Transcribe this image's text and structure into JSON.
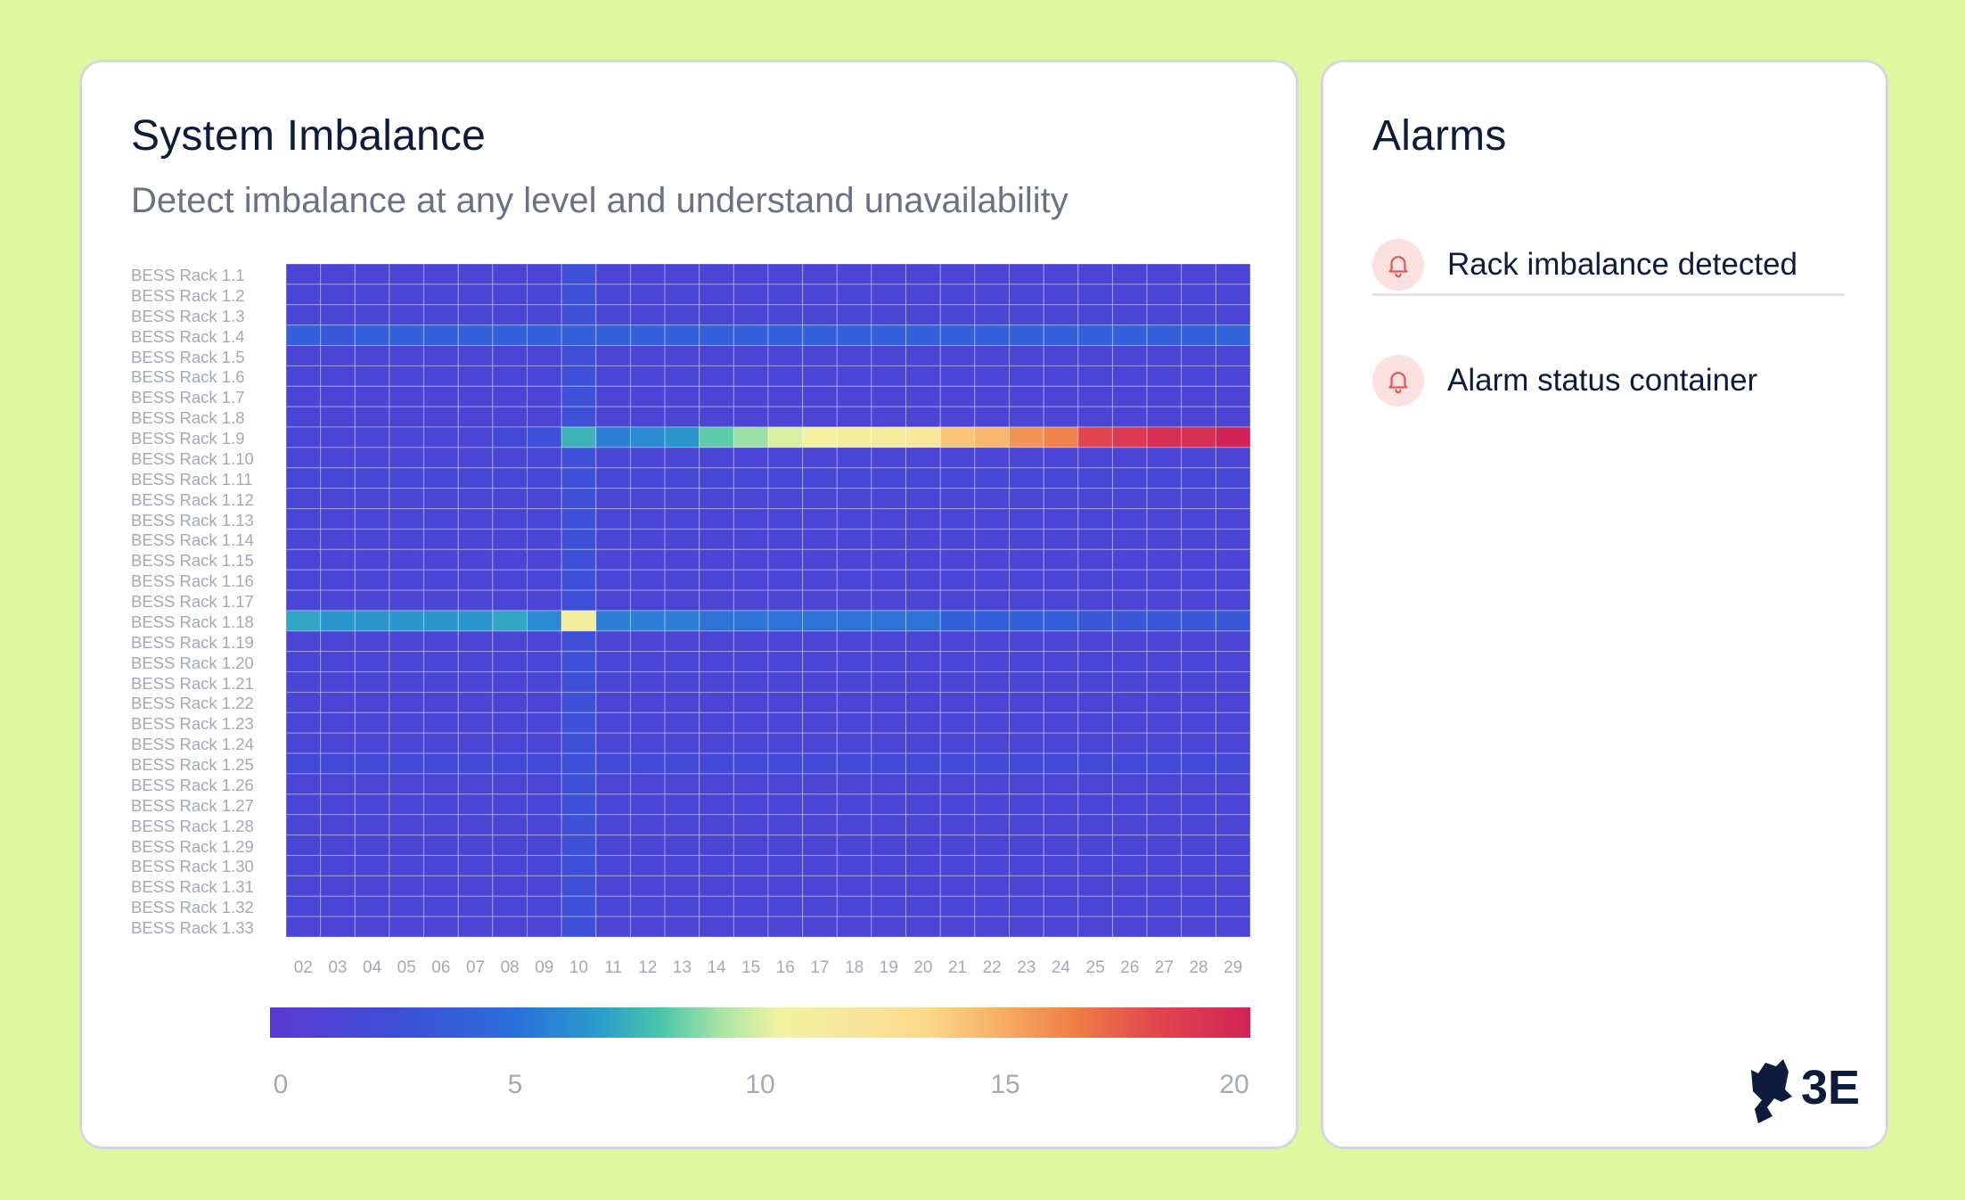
{
  "left_card": {
    "title": "System Imbalance",
    "subtitle": "Detect imbalance at any level and understand unavailability"
  },
  "right_card": {
    "title": "Alarms",
    "alarms": [
      {
        "label": "Rack imbalance detected",
        "icon": "bell-icon"
      },
      {
        "label": "Alarm status container",
        "icon": "bell-icon"
      }
    ]
  },
  "logo_text": "3E",
  "colors": {
    "background": "#dff8a0",
    "card": "#ffffff",
    "title": "#0e1b3d",
    "subtitle": "#6d7186",
    "alarm_icon_bg": "#fbe1df",
    "alarm_icon": "#e05a54"
  },
  "chart_data": {
    "type": "heatmap",
    "xlabel": "",
    "ylabel": "",
    "x": [
      "02",
      "03",
      "04",
      "05",
      "06",
      "07",
      "08",
      "09",
      "10",
      "11",
      "12",
      "13",
      "14",
      "15",
      "16",
      "17",
      "18",
      "19",
      "20",
      "21",
      "22",
      "23",
      "24",
      "25",
      "26",
      "27",
      "28",
      "29"
    ],
    "y": [
      "BESS Rack 1.1",
      "BESS Rack 1.2",
      "BESS Rack 1.3",
      "BESS Rack 1.4",
      "BESS Rack 1.5",
      "BESS Rack 1.6",
      "BESS Rack 1.7",
      "BESS Rack 1.8",
      "BESS Rack 1.9",
      "BESS Rack 1.10",
      "BESS Rack 1.11",
      "BESS Rack 1.12",
      "BESS Rack 1.13",
      "BESS Rack 1.14",
      "BESS Rack 1.15",
      "BESS Rack 1.16",
      "BESS Rack 1.17",
      "BESS Rack 1.18",
      "BESS Rack 1.19",
      "BESS Rack 1.20",
      "BESS Rack 1.21",
      "BESS Rack 1.22",
      "BESS Rack 1.23",
      "BESS Rack 1.24",
      "BESS Rack 1.25",
      "BESS Rack 1.26",
      "BESS Rack 1.27",
      "BESS Rack 1.28",
      "BESS Rack 1.29",
      "BESS Rack 1.30",
      "BESS Rack 1.31",
      "BESS Rack 1.32",
      "BESS Rack 1.33"
    ],
    "colorbar": {
      "min": 0,
      "max": 20,
      "ticks": [
        0,
        5,
        10,
        15,
        20
      ]
    },
    "default_value": 1.5,
    "column_value_overrides": {
      "10": 2.5
    },
    "row_values": {
      "BESS Rack 1.4": [
        3.5,
        3.0,
        3.5,
        3.5,
        3.5,
        3.5,
        3.5,
        3.5,
        3.5,
        3.5,
        3.5,
        3.5,
        3.5,
        3.5,
        3.5,
        3.5,
        3.5,
        3.5,
        3.5,
        3.5,
        3.5,
        3.5,
        3.5,
        3.5,
        3.5,
        3.5,
        3.5,
        3.8
      ],
      "BESS Rack 1.9": [
        1.5,
        1.5,
        1.5,
        1.5,
        1.5,
        1.5,
        2.0,
        2.5,
        7.0,
        5.0,
        5.5,
        6.0,
        8.0,
        9.0,
        10.0,
        10.5,
        11.0,
        11.5,
        12.0,
        14.5,
        15.0,
        16.0,
        16.5,
        18.5,
        19.0,
        19.5,
        19.5,
        20.0
      ],
      "BESS Rack 1.18": [
        6.5,
        6.0,
        6.0,
        6.0,
        6.0,
        6.0,
        6.5,
        5.5,
        11.0,
        5.0,
        5.0,
        5.0,
        4.5,
        4.5,
        4.5,
        4.5,
        4.5,
        4.5,
        4.5,
        3.5,
        3.5,
        3.5,
        3.5,
        3.0,
        3.0,
        3.0,
        3.0,
        3.0
      ],
      "BESS Rack 1.25": [
        2.0,
        2.0,
        2.0,
        2.0,
        2.0,
        2.0,
        2.0,
        2.0,
        2.5,
        2.0,
        2.0,
        2.0,
        2.0,
        2.0,
        2.0,
        2.0,
        2.0,
        2.0,
        2.0,
        2.0,
        2.0,
        2.0,
        2.0,
        2.0,
        2.0,
        2.0,
        2.0,
        2.0
      ],
      "BESS Rack 1.11": [
        1.8,
        1.8,
        1.8,
        1.8,
        1.8,
        1.8,
        1.8,
        1.8,
        2.5,
        1.8,
        1.8,
        1.8,
        1.8,
        1.8,
        1.8,
        1.8,
        1.8,
        1.8,
        1.8,
        1.8,
        1.8,
        1.8,
        1.8,
        1.8,
        1.8,
        1.8,
        1.8,
        1.8
      ]
    }
  }
}
